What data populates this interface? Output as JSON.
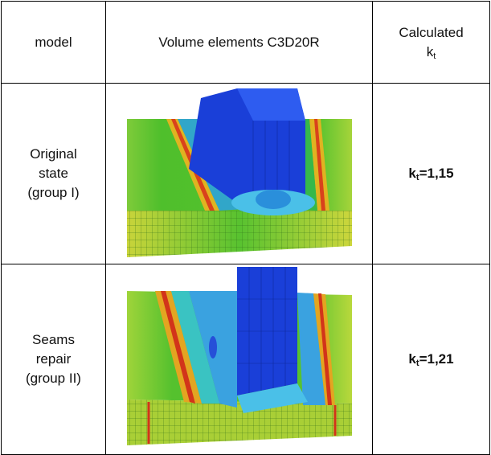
{
  "table": {
    "header": {
      "model": "model",
      "elements": "Volume elements C3D20R",
      "calculated": {
        "text": "Calculated",
        "symbol": "k",
        "subscript": "t"
      }
    },
    "rows": [
      {
        "label": [
          "Original",
          "state",
          "(group I)"
        ],
        "result": {
          "symbol": "k",
          "subscript": "t",
          "rest": "=1,15"
        }
      },
      {
        "label": [
          "Seams",
          "repair",
          "(group II)"
        ],
        "result": {
          "symbol": "k",
          "subscript": "t",
          "rest": "=1,21"
        }
      }
    ]
  }
}
